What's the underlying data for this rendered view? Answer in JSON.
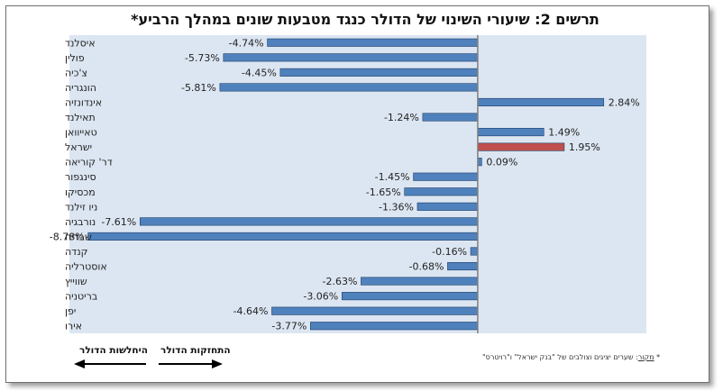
{
  "chart_data": {
    "type": "bar",
    "orientation": "horizontal",
    "title": "תרשים 2: שיעורי השינוי של הדולר כנגד מטבעות שונים במהלך הרביע*",
    "categories": [
      "איסלנד",
      "פולין",
      "צ'כיה",
      "הונגריה",
      "אינדונזיה",
      "תאילנד",
      "טאייוואן",
      "ישראל",
      "דר' קוריאה",
      "סינגפור",
      "מכסיקו",
      "ניו זילנד",
      "נורבגיה",
      "שבדיה",
      "קנדה",
      "אוסטרליה",
      "שווייץ",
      "בריטניה",
      "יפן",
      "אירו"
    ],
    "values": [
      -4.74,
      -5.73,
      -4.45,
      -5.81,
      2.84,
      -1.24,
      1.49,
      1.95,
      0.09,
      -1.45,
      -1.65,
      -1.36,
      -7.61,
      -8.78,
      -0.16,
      -0.68,
      -2.63,
      -3.06,
      -4.64,
      -3.77
    ],
    "value_labels": [
      "-4.74%",
      "-5.73%",
      "-4.45%",
      "-5.81%",
      "2.84%",
      "-1.24%",
      "1.49%",
      "1.95%",
      "0.09%",
      "-1.45%",
      "-1.65%",
      "-1.36%",
      "-7.61%",
      "-8.78%",
      "-0.16%",
      "-0.68%",
      "-2.63%",
      "-3.06%",
      "-4.64%",
      "-3.77%"
    ],
    "highlight_category": "ישראל",
    "xlim": [
      -9.2,
      3.8
    ],
    "grid": false,
    "colors": {
      "bar": "#4f81bd",
      "highlight": "#c0504d",
      "plot_bg": "#dce6f2",
      "axis": "#7f7f7f"
    }
  },
  "footer": {
    "source_label": "מקור",
    "source_text": ": שערים יציגים וצולבים של \"בנק ישראל\" ו\"רויטרס\"",
    "asterisk": "*",
    "strengthening_label": "התחזקות הדולר",
    "weakening_label": "היחלשות הדולר"
  }
}
